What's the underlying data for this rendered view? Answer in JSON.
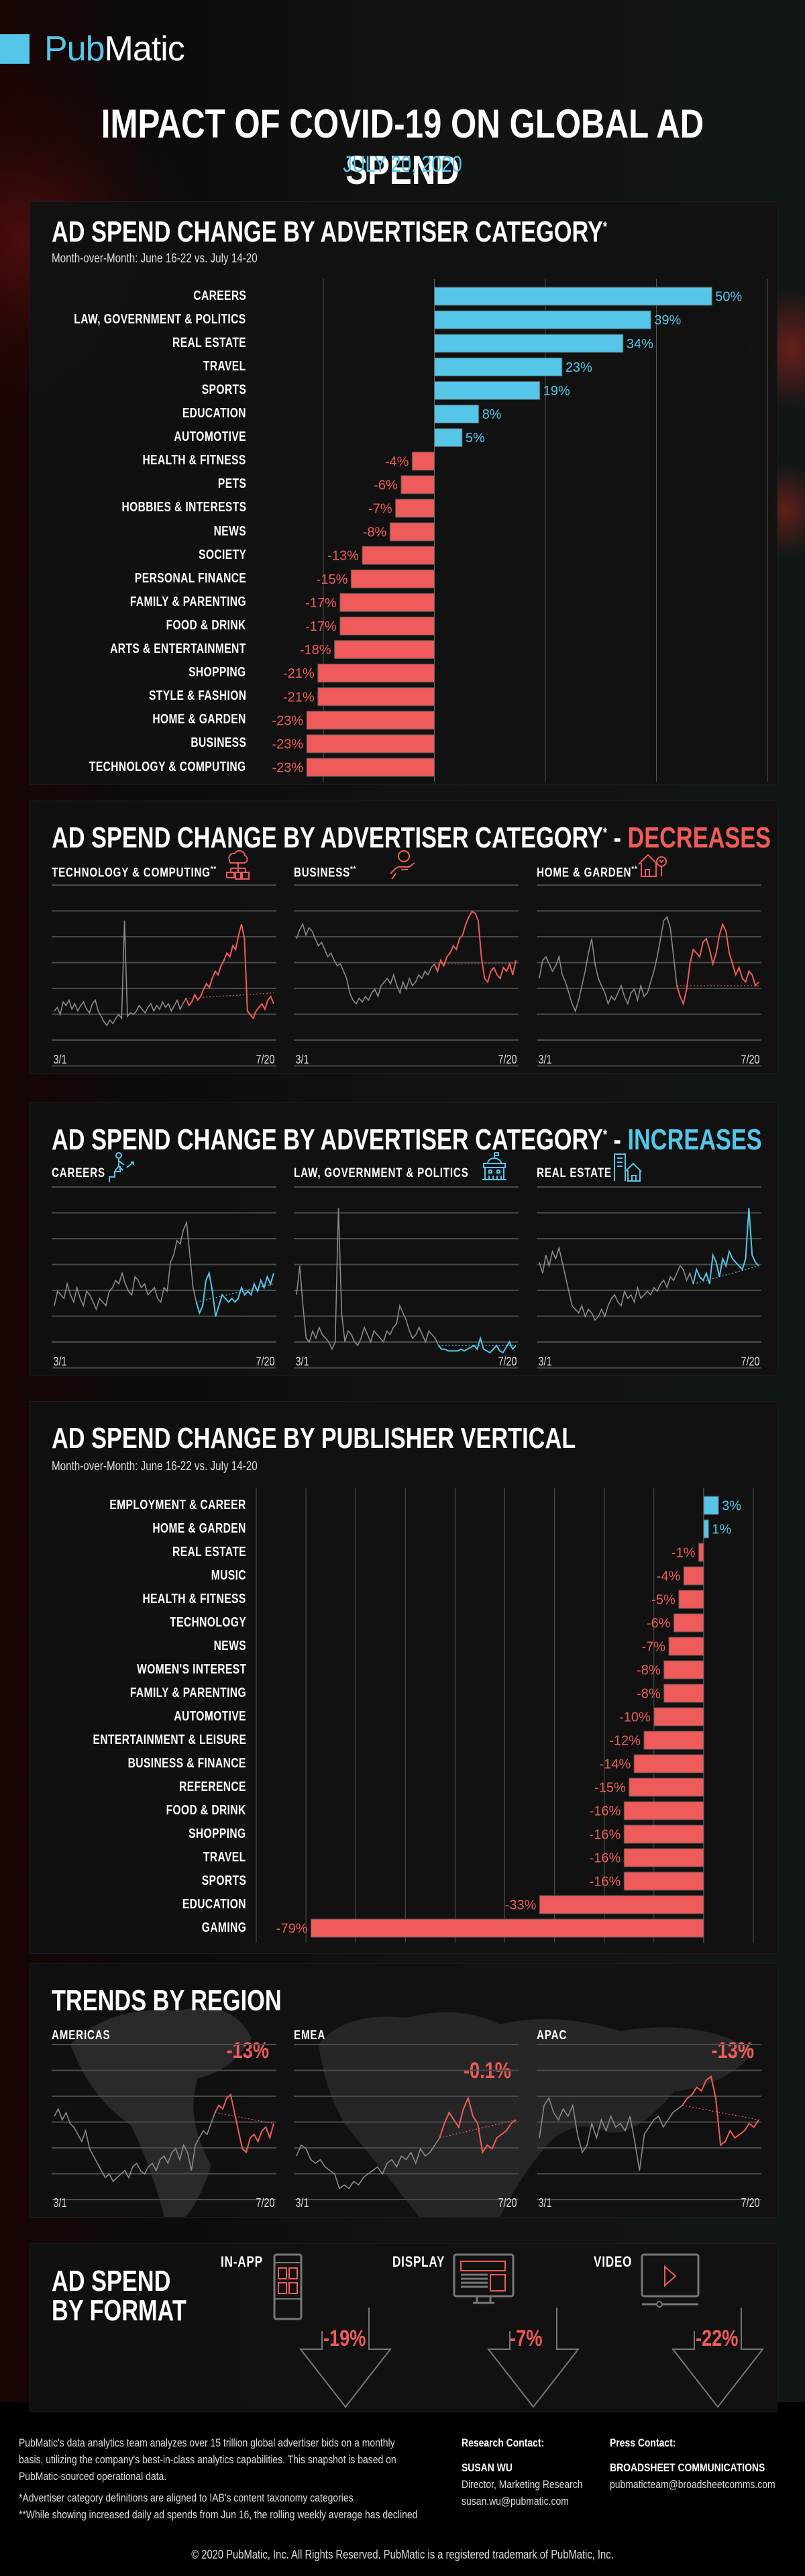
{
  "brand": {
    "logo_part1": "Pub",
    "logo_part2": "Matic",
    "accent_blue": "#55c6e8",
    "accent_red": "#ef5a5a"
  },
  "header": {
    "title": "IMPACT OF COVID-19 ON GLOBAL AD SPEND",
    "date": "JULY 20, 2020"
  },
  "sections": {
    "advertiser": {
      "title": "AD SPEND CHANGE BY ADVERTISER CATEGORY",
      "asterisk": "*",
      "subtitle": "Month-over-Month: June 16-22 vs. July 14-20"
    },
    "decreases": {
      "title": "AD SPEND CHANGE BY ADVERTISER CATEGORY",
      "asterisk": "*",
      "dash": " - ",
      "highlight": "DECREASES"
    },
    "increases": {
      "title": "AD SPEND CHANGE BY ADVERTISER CATEGORY",
      "asterisk": "*",
      "dash": " - ",
      "highlight": "INCREASES"
    },
    "publisher": {
      "title": "AD SPEND CHANGE BY PUBLISHER VERTICAL",
      "subtitle": "Month-over-Month: June 16-22 vs. July 14-20"
    },
    "region": {
      "title": "TRENDS BY REGION"
    },
    "format": {
      "title_line1": "AD SPEND",
      "title_line2": "BY FORMAT"
    }
  },
  "chart_data": [
    {
      "id": "advertiser_category",
      "type": "bar",
      "orientation": "horizontal",
      "title": "AD SPEND CHANGE BY ADVERTISER CATEGORY*",
      "subtitle": "Month-over-Month: June 16-22 vs. July 14-20",
      "unit": "%",
      "xlim": [
        -20,
        60
      ],
      "grid": true,
      "categories": [
        "CAREERS",
        "LAW, GOVERNMENT & POLITICS",
        "REAL ESTATE",
        "TRAVEL",
        "SPORTS",
        "EDUCATION",
        "AUTOMOTIVE",
        "HEALTH & FITNESS",
        "PETS",
        "HOBBIES & INTERESTS",
        "NEWS",
        "SOCIETY",
        "PERSONAL FINANCE",
        "FAMILY & PARENTING",
        "FOOD & DRINK",
        "ARTS & ENTERTAINMENT",
        "SHOPPING",
        "STYLE & FASHION",
        "HOME & GARDEN",
        "BUSINESS",
        "TECHNOLOGY & COMPUTING"
      ],
      "values": [
        50,
        39,
        34,
        23,
        19,
        8,
        5,
        -4,
        -6,
        -7,
        -8,
        -13,
        -15,
        -17,
        -17,
        -18,
        -21,
        -21,
        -23,
        -23,
        -23
      ],
      "labels": [
        "50%",
        "39%",
        "34%",
        "23%",
        "19%",
        "8%",
        "5%",
        "-4%",
        "-6%",
        "-7%",
        "-8%",
        "-13%",
        "-15%",
        "-17%",
        "-17%",
        "-18%",
        "-21%",
        "-21%",
        "-23%",
        "-23%",
        "-23%"
      ]
    },
    {
      "id": "decreases_trends",
      "type": "line",
      "x_start_label": "3/1",
      "x_end_label": "7/20",
      "panels": [
        {
          "name": "TECHNOLOGY & COMPUTING",
          "suffix": "**",
          "icon": "cloud-network-icon",
          "values": [
            30,
            32,
            28,
            35,
            33,
            36,
            31,
            34,
            30,
            33,
            35,
            31,
            29,
            34,
            36,
            30,
            27,
            24,
            22,
            25,
            23,
            26,
            28,
            26,
            80,
            27,
            29,
            28,
            30,
            33,
            31,
            29,
            32,
            34,
            30,
            33,
            31,
            35,
            32,
            34,
            30,
            33,
            36,
            31,
            34,
            37,
            33,
            35,
            39,
            36,
            38,
            42,
            45,
            43,
            48,
            52,
            50,
            55,
            58,
            62,
            60,
            66,
            64,
            72,
            78,
            70,
            30,
            28,
            26,
            30,
            32,
            34,
            31,
            36,
            38,
            34
          ],
          "highlight_from": 45,
          "trend_from": 45,
          "trend_to_value": 40
        },
        {
          "name": "BUSINESS",
          "suffix": "**",
          "icon": "money-hand-icon",
          "values": [
            70,
            75,
            78,
            72,
            76,
            74,
            70,
            66,
            68,
            64,
            60,
            62,
            58,
            55,
            56,
            52,
            48,
            40,
            36,
            34,
            37,
            35,
            38,
            36,
            40,
            42,
            38,
            44,
            46,
            48,
            45,
            50,
            44,
            40,
            46,
            42,
            48,
            44,
            46,
            50,
            48,
            52,
            50,
            54,
            56,
            52,
            58,
            55,
            60,
            62,
            66,
            64,
            70,
            72,
            78,
            82,
            85,
            84,
            80,
            60,
            48,
            46,
            52,
            54,
            50,
            48,
            54,
            52,
            56,
            50,
            58
          ],
          "highlight_from": 44,
          "trend_from": 44,
          "trend_to_value": 56
        },
        {
          "name": "HOME & GARDEN",
          "suffix": "**",
          "icon": "house-tree-icon",
          "values": [
            48,
            58,
            60,
            56,
            52,
            55,
            60,
            50,
            46,
            40,
            34,
            30,
            36,
            44,
            52,
            62,
            70,
            56,
            48,
            44,
            40,
            34,
            38,
            36,
            40,
            44,
            38,
            34,
            40,
            42,
            36,
            44,
            38,
            40,
            46,
            52,
            60,
            70,
            80,
            82,
            76,
            60,
            44,
            38,
            34,
            42,
            56,
            64,
            62,
            60,
            68,
            70,
            64,
            56,
            62,
            72,
            78,
            74,
            62,
            56,
            50,
            54,
            48,
            46,
            52,
            50,
            44,
            46
          ],
          "highlight_from": 42,
          "trend_from": 42,
          "trend_to_value": 44
        }
      ]
    },
    {
      "id": "increases_trends",
      "type": "line",
      "x_start_label": "3/1",
      "x_end_label": "7/20",
      "panels": [
        {
          "name": "CAREERS",
          "suffix": "",
          "icon": "climbing-stairs-icon",
          "values": [
            34,
            42,
            40,
            38,
            46,
            40,
            36,
            44,
            38,
            34,
            42,
            40,
            36,
            32,
            38,
            36,
            34,
            42,
            44,
            48,
            46,
            52,
            46,
            42,
            40,
            50,
            48,
            44,
            46,
            40,
            42,
            44,
            38,
            36,
            44,
            42,
            58,
            62,
            70,
            68,
            76,
            80,
            62,
            44,
            36,
            30,
            34,
            48,
            52,
            42,
            28,
            34,
            40,
            38,
            36,
            38,
            36,
            38,
            44,
            40,
            42,
            40,
            46,
            42,
            48,
            44,
            50,
            46,
            52
          ],
          "highlight_from": 44,
          "trend_from": 44,
          "trend_to_value": 46
        },
        {
          "name": "LAW, GOVERNMENT & POLITICS",
          "suffix": "",
          "icon": "government-building-icon",
          "values": [
            40,
            56,
            34,
            16,
            14,
            20,
            16,
            22,
            18,
            16,
            14,
            10,
            14,
            88,
            30,
            14,
            20,
            18,
            14,
            12,
            16,
            22,
            18,
            14,
            20,
            18,
            16,
            14,
            20,
            18,
            22,
            24,
            34,
            30,
            26,
            20,
            16,
            18,
            22,
            18,
            14,
            20,
            18,
            16,
            12,
            10,
            10,
            9,
            9,
            9,
            9,
            10,
            9,
            10,
            11,
            12,
            10,
            16,
            10,
            9,
            8,
            10,
            12,
            9,
            8,
            11,
            14,
            10,
            12
          ],
          "highlight_from": 44,
          "trend_from": 44,
          "trend_to_value": 12
        },
        {
          "name": "REAL ESTATE",
          "suffix": "",
          "icon": "real-estate-buildings-icon",
          "values": [
            58,
            52,
            62,
            56,
            64,
            60,
            66,
            58,
            50,
            42,
            34,
            32,
            30,
            34,
            28,
            32,
            30,
            26,
            28,
            32,
            28,
            34,
            38,
            40,
            36,
            34,
            42,
            38,
            40,
            36,
            44,
            38,
            40,
            42,
            40,
            44,
            42,
            46,
            48,
            44,
            50,
            48,
            52,
            56,
            54,
            48,
            52,
            46,
            54,
            50,
            48,
            52,
            46,
            62,
            58,
            50,
            60,
            56,
            64,
            60,
            58,
            56,
            54,
            60,
            88,
            62,
            58,
            56
          ],
          "highlight_from": 47,
          "trend_from": 47,
          "trend_to_value": 56
        }
      ]
    },
    {
      "id": "publisher_vertical",
      "type": "bar",
      "orientation": "horizontal",
      "title": "AD SPEND CHANGE BY PUBLISHER VERTICAL",
      "subtitle": "Month-over-Month: June 16-22 vs. July 14-20",
      "unit": "%",
      "xlim": [
        -90,
        10
      ],
      "grid": true,
      "categories": [
        "EMPLOYMENT & CAREER",
        "HOME & GARDEN",
        "REAL ESTATE",
        "MUSIC",
        "HEALTH & FITNESS",
        "TECHNOLOGY",
        "NEWS",
        "WOMEN'S INTEREST",
        "FAMILY & PARENTING",
        "AUTOMOTIVE",
        "ENTERTAINMENT & LEISURE",
        "BUSINESS & FINANCE",
        "REFERENCE",
        "FOOD & DRINK",
        "SHOPPING",
        "TRAVEL",
        "SPORTS",
        "EDUCATION",
        "GAMING"
      ],
      "values": [
        3,
        1,
        -1,
        -4,
        -5,
        -6,
        -7,
        -8,
        -8,
        -10,
        -12,
        -14,
        -15,
        -16,
        -16,
        -16,
        -16,
        -33,
        -79
      ],
      "labels": [
        "3%",
        "1%",
        "-1%",
        "-4%",
        "-5%",
        "-6%",
        "-7%",
        "-8%",
        "-8%",
        "-10%",
        "-12%",
        "-14%",
        "-15%",
        "-16%",
        "-16%",
        "-16%",
        "-16%",
        "-33%",
        "-79%"
      ]
    },
    {
      "id": "region_trends",
      "type": "line",
      "title": "TRENDS BY REGION",
      "x_start_label": "3/1",
      "x_end_label": "7/20",
      "panels": [
        {
          "name": "AMERICAS",
          "change": "-13%",
          "values": [
            60,
            64,
            58,
            62,
            56,
            54,
            50,
            46,
            52,
            42,
            38,
            34,
            30,
            26,
            28,
            24,
            26,
            28,
            30,
            26,
            32,
            34,
            30,
            28,
            32,
            34,
            30,
            36,
            38,
            34,
            40,
            42,
            36,
            44,
            40,
            30,
            44,
            48,
            52,
            50,
            56,
            62,
            66,
            64,
            70,
            72,
            62,
            52,
            42,
            40,
            48,
            50,
            46,
            52,
            54,
            48,
            56
          ],
          "highlight_from": 41,
          "trend_from": 41,
          "trend_to_value": 56
        },
        {
          "name": "EMEA",
          "change": "-0.1%",
          "values": [
            38,
            44,
            42,
            36,
            34,
            36,
            32,
            30,
            28,
            20,
            22,
            20,
            24,
            22,
            26,
            28,
            30,
            32,
            28,
            34,
            36,
            32,
            38,
            36,
            40,
            34,
            42,
            38,
            40,
            44,
            48,
            56,
            62,
            58,
            54,
            64,
            70,
            60,
            56,
            40,
            44,
            42,
            48,
            50,
            52,
            56,
            58
          ],
          "highlight_from": 30,
          "trend_from": 30,
          "trend_to_value": 58
        },
        {
          "name": "APAC",
          "change": "-13%",
          "values": [
            48,
            66,
            70,
            62,
            58,
            64,
            60,
            66,
            50,
            40,
            44,
            56,
            48,
            58,
            52,
            60,
            54,
            56,
            52,
            60,
            46,
            30,
            50,
            54,
            58,
            60,
            54,
            58,
            62,
            64,
            66,
            70,
            72,
            76,
            74,
            80,
            82,
            70,
            44,
            46,
            52,
            48,
            50,
            52,
            56,
            54,
            58
          ],
          "highlight_from": 30,
          "trend_from": 30,
          "trend_to_value": 58
        }
      ]
    },
    {
      "id": "format_change",
      "type": "table",
      "rows": [
        {
          "format": "IN-APP",
          "change": "-19%",
          "icon": "mobile-phone-icon"
        },
        {
          "format": "DISPLAY",
          "change": "-7%",
          "icon": "desktop-monitor-icon"
        },
        {
          "format": "VIDEO",
          "change": "-22%",
          "icon": "video-player-icon"
        }
      ]
    }
  ],
  "footer": {
    "about_lines": [
      "PubMatic's data analytics team analyzes over 15 trillion global advertiser bids on a monthly",
      "basis, utilizing the company's best-in-class analytics capabilities. This snapshot is based on",
      "PubMatic-sourced operational data."
    ],
    "note1": "*Advertiser category definitions are aligned to IAB's content taxonomy categories",
    "note2": "**While showing increased daily ad spends from Jun 16, the rolling weekly average has declined",
    "research": {
      "heading": "Research Contact:",
      "name": "SUSAN WU",
      "role": "Director, Marketing Research",
      "email": "susan.wu@pubmatic.com"
    },
    "press": {
      "heading": "Press Contact:",
      "name": "BROADSHEET COMMUNICATIONS",
      "email": "pubmaticteam@broadsheetcomms.com"
    },
    "copyright": "© 2020 PubMatic, Inc. All Rights Reserved. PubMatic is a registered trademark of PubMatic, Inc."
  }
}
